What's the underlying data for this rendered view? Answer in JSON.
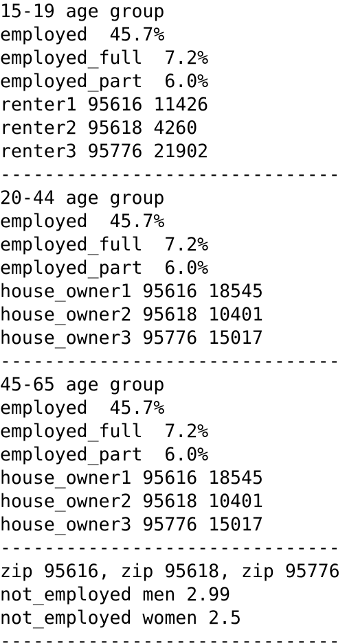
{
  "lines": [
    "15-19 age group",
    "employed  45.7%",
    "employed_full  7.2%",
    "employed_part  6.0%",
    "renter1 95616 11426",
    "renter2 95618 4260",
    "renter3 95776 21902",
    "-------------------------------",
    "20-44 age group",
    "employed  45.7%",
    "employed_full  7.2%",
    "employed_part  6.0%",
    "house_owner1 95616 18545",
    "house_owner2 95618 10401",
    "house_owner3 95776 15017",
    "-------------------------------",
    "45-65 age group",
    "employed  45.7%",
    "employed_full  7.2%",
    "employed_part  6.0%",
    "house_owner1 95616 18545",
    "house_owner2 95618 10401",
    "house_owner3 95776 15017",
    "-------------------------------",
    "zip 95616, zip 95618, zip 95776",
    "not_employed men 2.99",
    "not_employed women 2.5",
    "-------------------------------"
  ]
}
